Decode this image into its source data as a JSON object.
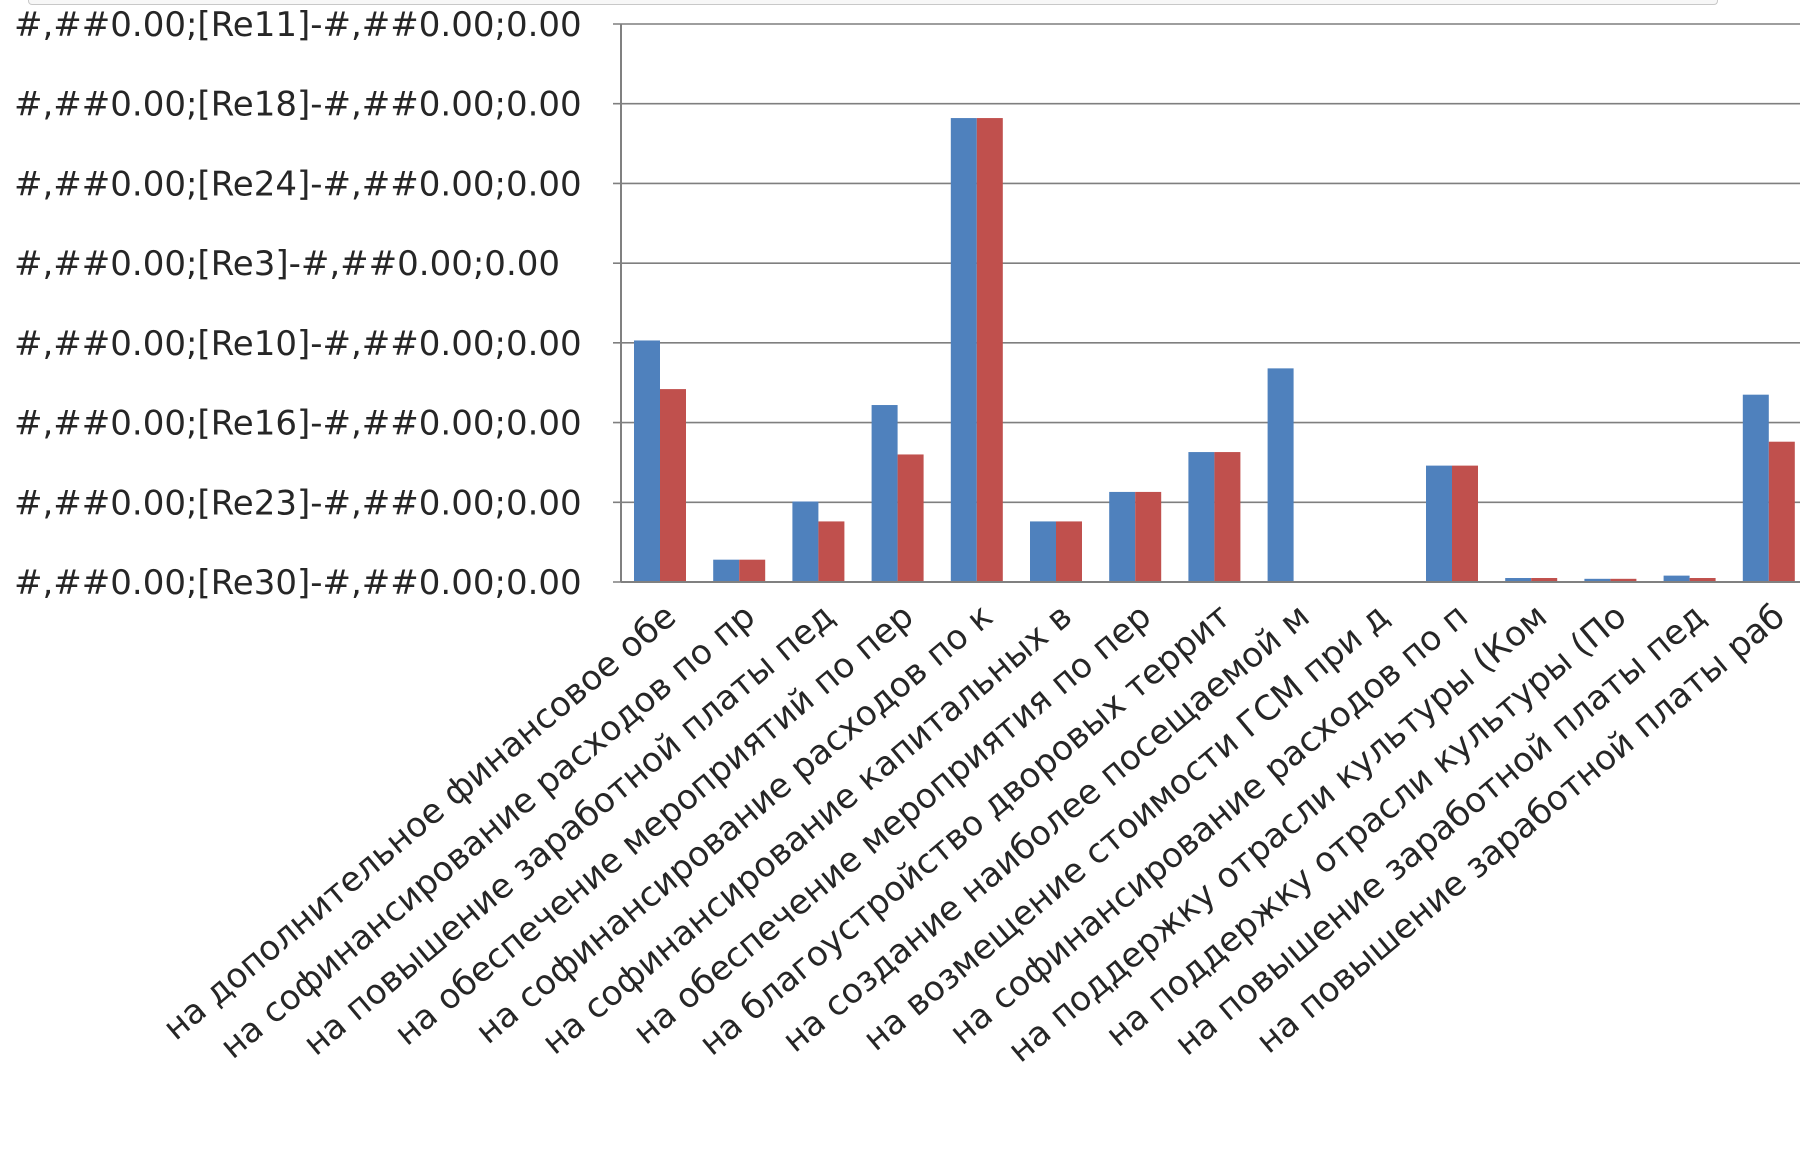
{
  "chart_data": {
    "type": "bar",
    "title": "",
    "xlabel": "",
    "ylabel": "",
    "ylim": [
      0,
      7
    ],
    "grid": true,
    "legend": "none",
    "y_tick_labels": [
      "#,##0.00;[Re30]-#,##0.00;0.00",
      "#,##0.00;[Re23]-#,##0.00;0.00",
      "#,##0.00;[Re16]-#,##0.00;0.00",
      "#,##0.00;[Re10]-#,##0.00;0.00",
      "#,##0.00;[Re3]-#,##0.00;0.00",
      "#,##0.00;[Re24]-#,##0.00;0.00",
      "#,##0.00;[Re18]-#,##0.00;0.00",
      "#,##0.00;[Re11]-#,##0.00;0.00"
    ],
    "categories": [
      "на дополнительное финансовое обе",
      "на софинансирование расходов по пр",
      "на повышение заработной платы пед",
      "на обеспечение мероприятий по пер",
      "на софинансирование расходов по к",
      "на софинансирование капитальных в",
      "на обеспечение мероприятия по пер",
      "на благоустройство дворовых террит",
      "на создание наиболее посещаемой м",
      "на возмещение стоимости ГСМ при д",
      "на софинансирование расходов по п",
      "на поддержку отрасли культуры (Ком",
      "на поддержку отрасли культуры (По",
      "на повышение заработной платы пед",
      "на повышение заработной платы раб"
    ],
    "series": [
      {
        "values": [
          3.03,
          0.28,
          1.01,
          2.22,
          5.82,
          0.76,
          1.13,
          1.63,
          2.68,
          0.01,
          1.46,
          0.05,
          0.04,
          0.08,
          2.35
        ]
      },
      {
        "values": [
          2.42,
          0.28,
          0.76,
          1.6,
          5.82,
          0.76,
          1.13,
          1.63,
          0.0,
          0.01,
          1.46,
          0.05,
          0.04,
          0.05,
          1.76
        ]
      }
    ],
    "colors": {
      "series1": "#4f81bd",
      "series2": "#c0504d",
      "grid": "#7f7f7f",
      "axis": "#808080"
    }
  }
}
